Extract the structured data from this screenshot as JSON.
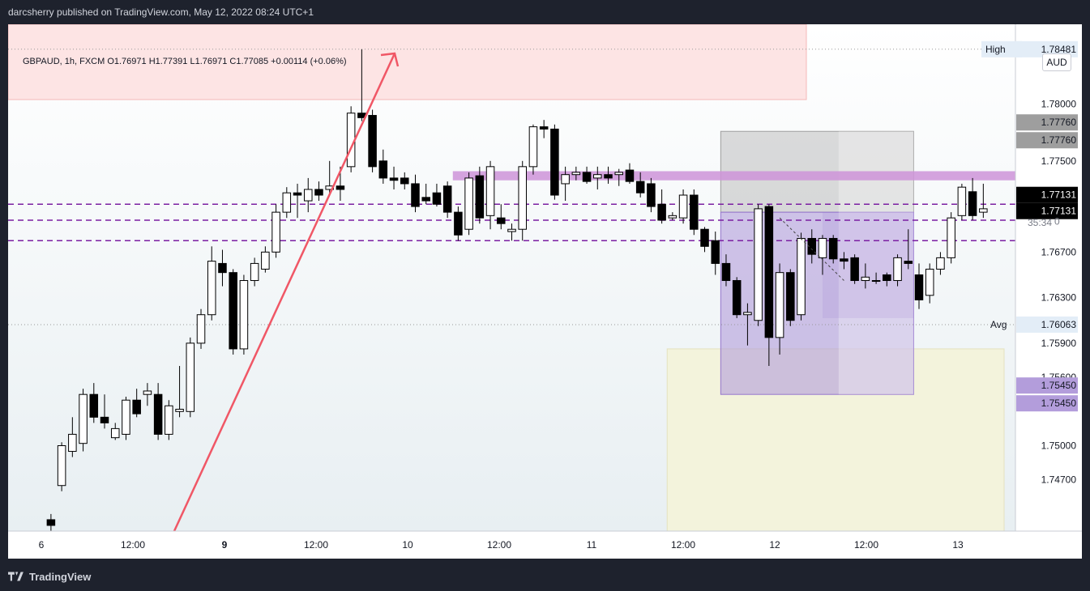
{
  "header": {
    "published_text": "darcsherry published on TradingView.com, May 12, 2022 08:24 UTC+1"
  },
  "footer": {
    "brand": "TradingView"
  },
  "legend": {
    "ohlc_text": "GBPAUD, 1h, FXCM  O1.76971  H1.77391  L1.76971  C1.77085  +0.00114 (+0.06%)"
  },
  "currency": "AUD",
  "price_labels": {
    "high_label": "High",
    "high_value": "1.78481",
    "avg_label": "Avg",
    "avg_value": "1.76063",
    "gray_top": "1.77760",
    "gray_bottom": "1.77760",
    "current_top": "1.77131",
    "current_bottom": "1.77131",
    "countdown": "35:34",
    "countdown_suffix": "0",
    "purple_top": "1.75450",
    "purple_bottom": "1.75450"
  },
  "colors": {
    "up_body": "#ffffff",
    "down_body": "#000000",
    "wick": "#000000",
    "dashed_lines": "#7b1fa2",
    "horizontal_band": "#ce93d8",
    "arrow": "#f05766",
    "supply_zone": "#fde4e4",
    "demand_zone": "#f3f3dc",
    "purple_box": "#b39ddb",
    "gray_box": "#bdbdbd"
  },
  "chart_data": {
    "type": "candlestick",
    "symbol": "GBPAUD",
    "timeframe": "1h",
    "x_tick_labels": [
      "6",
      "12:00",
      "9",
      "12:00",
      "10",
      "12:00",
      "11",
      "12:00",
      "12",
      "12:00",
      "13"
    ],
    "y_tick_labels": [
      "1.78000",
      "1.77500",
      "1.76700",
      "1.76300",
      "1.75900",
      "1.75600",
      "1.75000",
      "1.74700"
    ],
    "ylim": [
      1.7425,
      1.787
    ],
    "x_range": [
      -4,
      90
    ],
    "candles": [
      {
        "o": 1.7435,
        "h": 1.744,
        "l": 1.7425,
        "c": 1.743
      },
      {
        "o": 1.7465,
        "h": 1.7503,
        "l": 1.746,
        "c": 1.75
      },
      {
        "o": 1.7495,
        "h": 1.7525,
        "l": 1.749,
        "c": 1.751
      },
      {
        "o": 1.7502,
        "h": 1.755,
        "l": 1.7495,
        "c": 1.7545
      },
      {
        "o": 1.7545,
        "h": 1.7555,
        "l": 1.752,
        "c": 1.7525
      },
      {
        "o": 1.7525,
        "h": 1.7545,
        "l": 1.7515,
        "c": 1.752
      },
      {
        "o": 1.7507,
        "h": 1.752,
        "l": 1.7505,
        "c": 1.7515
      },
      {
        "o": 1.751,
        "h": 1.7543,
        "l": 1.7505,
        "c": 1.754
      },
      {
        "o": 1.754,
        "h": 1.755,
        "l": 1.7525,
        "c": 1.7528
      },
      {
        "o": 1.7545,
        "h": 1.7555,
        "l": 1.7535,
        "c": 1.7548
      },
      {
        "o": 1.7545,
        "h": 1.7555,
        "l": 1.7505,
        "c": 1.751
      },
      {
        "o": 1.751,
        "h": 1.754,
        "l": 1.7505,
        "c": 1.7535
      },
      {
        "o": 1.753,
        "h": 1.757,
        "l": 1.7525,
        "c": 1.7532
      },
      {
        "o": 1.753,
        "h": 1.7595,
        "l": 1.7525,
        "c": 1.759
      },
      {
        "o": 1.759,
        "h": 1.762,
        "l": 1.7585,
        "c": 1.7615
      },
      {
        "o": 1.7615,
        "h": 1.7675,
        "l": 1.761,
        "c": 1.7662
      },
      {
        "o": 1.766,
        "h": 1.7672,
        "l": 1.764,
        "c": 1.7652
      },
      {
        "o": 1.7652,
        "h": 1.7655,
        "l": 1.758,
        "c": 1.7585
      },
      {
        "o": 1.7585,
        "h": 1.765,
        "l": 1.758,
        "c": 1.7645
      },
      {
        "o": 1.7645,
        "h": 1.7665,
        "l": 1.764,
        "c": 1.766
      },
      {
        "o": 1.7655,
        "h": 1.7675,
        "l": 1.7652,
        "c": 1.767
      },
      {
        "o": 1.767,
        "h": 1.7712,
        "l": 1.7665,
        "c": 1.7705
      },
      {
        "o": 1.7705,
        "h": 1.7727,
        "l": 1.77,
        "c": 1.7722
      },
      {
        "o": 1.7722,
        "h": 1.773,
        "l": 1.77,
        "c": 1.772
      },
      {
        "o": 1.7715,
        "h": 1.7735,
        "l": 1.7705,
        "c": 1.7725
      },
      {
        "o": 1.7725,
        "h": 1.7732,
        "l": 1.7715,
        "c": 1.772
      },
      {
        "o": 1.7725,
        "h": 1.775,
        "l": 1.772,
        "c": 1.7728
      },
      {
        "o": 1.7728,
        "h": 1.7745,
        "l": 1.7715,
        "c": 1.7725
      },
      {
        "o": 1.7745,
        "h": 1.7798,
        "l": 1.774,
        "c": 1.7792
      },
      {
        "o": 1.7792,
        "h": 1.7848,
        "l": 1.7785,
        "c": 1.7788
      },
      {
        "o": 1.779,
        "h": 1.7795,
        "l": 1.774,
        "c": 1.7745
      },
      {
        "o": 1.775,
        "h": 1.776,
        "l": 1.773,
        "c": 1.7735
      },
      {
        "o": 1.7735,
        "h": 1.7745,
        "l": 1.7725,
        "c": 1.7733
      },
      {
        "o": 1.7735,
        "h": 1.774,
        "l": 1.7725,
        "c": 1.773
      },
      {
        "o": 1.773,
        "h": 1.7738,
        "l": 1.7705,
        "c": 1.771
      },
      {
        "o": 1.7718,
        "h": 1.773,
        "l": 1.7712,
        "c": 1.7715
      },
      {
        "o": 1.7722,
        "h": 1.773,
        "l": 1.771,
        "c": 1.7712
      },
      {
        "o": 1.7728,
        "h": 1.7732,
        "l": 1.77,
        "c": 1.7705
      },
      {
        "o": 1.7705,
        "h": 1.771,
        "l": 1.768,
        "c": 1.7685
      },
      {
        "o": 1.769,
        "h": 1.774,
        "l": 1.7685,
        "c": 1.7735
      },
      {
        "o": 1.7737,
        "h": 1.7745,
        "l": 1.7695,
        "c": 1.77
      },
      {
        "o": 1.7702,
        "h": 1.775,
        "l": 1.769,
        "c": 1.7745
      },
      {
        "o": 1.77,
        "h": 1.7712,
        "l": 1.769,
        "c": 1.7695
      },
      {
        "o": 1.7688,
        "h": 1.7695,
        "l": 1.768,
        "c": 1.769
      },
      {
        "o": 1.769,
        "h": 1.775,
        "l": 1.768,
        "c": 1.7745
      },
      {
        "o": 1.7745,
        "h": 1.7782,
        "l": 1.7738,
        "c": 1.778
      },
      {
        "o": 1.778,
        "h": 1.7786,
        "l": 1.777,
        "c": 1.7778
      },
      {
        "o": 1.7778,
        "h": 1.7782,
        "l": 1.7716,
        "c": 1.772
      },
      {
        "o": 1.773,
        "h": 1.7745,
        "l": 1.7715,
        "c": 1.7738
      },
      {
        "o": 1.7738,
        "h": 1.7745,
        "l": 1.7733,
        "c": 1.774
      },
      {
        "o": 1.774,
        "h": 1.7745,
        "l": 1.773,
        "c": 1.7732
      },
      {
        "o": 1.7735,
        "h": 1.7745,
        "l": 1.7725,
        "c": 1.7738
      },
      {
        "o": 1.7738,
        "h": 1.7745,
        "l": 1.773,
        "c": 1.7735
      },
      {
        "o": 1.7738,
        "h": 1.7743,
        "l": 1.7728,
        "c": 1.774
      },
      {
        "o": 1.7742,
        "h": 1.7748,
        "l": 1.773,
        "c": 1.7732
      },
      {
        "o": 1.7732,
        "h": 1.774,
        "l": 1.7718,
        "c": 1.7722
      },
      {
        "o": 1.773,
        "h": 1.7735,
        "l": 1.7705,
        "c": 1.771
      },
      {
        "o": 1.7712,
        "h": 1.7725,
        "l": 1.7695,
        "c": 1.7698
      },
      {
        "o": 1.77,
        "h": 1.7705,
        "l": 1.7698,
        "c": 1.7702
      },
      {
        "o": 1.77,
        "h": 1.7725,
        "l": 1.7695,
        "c": 1.772
      },
      {
        "o": 1.772,
        "h": 1.7725,
        "l": 1.7685,
        "c": 1.769
      },
      {
        "o": 1.769,
        "h": 1.7692,
        "l": 1.767,
        "c": 1.7675
      },
      {
        "o": 1.768,
        "h": 1.7688,
        "l": 1.765,
        "c": 1.766
      },
      {
        "o": 1.766,
        "h": 1.7668,
        "l": 1.764,
        "c": 1.7645
      },
      {
        "o": 1.7645,
        "h": 1.7648,
        "l": 1.7612,
        "c": 1.7615
      },
      {
        "o": 1.7615,
        "h": 1.7625,
        "l": 1.7588,
        "c": 1.7617
      },
      {
        "o": 1.761,
        "h": 1.7712,
        "l": 1.7605,
        "c": 1.7708
      },
      {
        "o": 1.771,
        "h": 1.7712,
        "l": 1.757,
        "c": 1.7595
      },
      {
        "o": 1.7595,
        "h": 1.766,
        "l": 1.758,
        "c": 1.7652
      },
      {
        "o": 1.7652,
        "h": 1.7655,
        "l": 1.7605,
        "c": 1.761
      },
      {
        "o": 1.7615,
        "h": 1.7687,
        "l": 1.761,
        "c": 1.7682
      },
      {
        "o": 1.7682,
        "h": 1.769,
        "l": 1.766,
        "c": 1.7668
      },
      {
        "o": 1.7665,
        "h": 1.7685,
        "l": 1.765,
        "c": 1.7682
      },
      {
        "o": 1.7682,
        "h": 1.7685,
        "l": 1.766,
        "c": 1.7664
      },
      {
        "o": 1.7664,
        "h": 1.767,
        "l": 1.7655,
        "c": 1.7662
      },
      {
        "o": 1.7665,
        "h": 1.7668,
        "l": 1.7642,
        "c": 1.7645
      },
      {
        "o": 1.7645,
        "h": 1.766,
        "l": 1.7638,
        "c": 1.7648
      },
      {
        "o": 1.7645,
        "h": 1.7652,
        "l": 1.7642,
        "c": 1.7645
      },
      {
        "o": 1.765,
        "h": 1.7652,
        "l": 1.764,
        "c": 1.7645
      },
      {
        "o": 1.7645,
        "h": 1.7668,
        "l": 1.764,
        "c": 1.7665
      },
      {
        "o": 1.7662,
        "h": 1.769,
        "l": 1.7655,
        "c": 1.766
      },
      {
        "o": 1.765,
        "h": 1.766,
        "l": 1.762,
        "c": 1.7628
      },
      {
        "o": 1.7632,
        "h": 1.766,
        "l": 1.7625,
        "c": 1.7655
      },
      {
        "o": 1.7655,
        "h": 1.767,
        "l": 1.765,
        "c": 1.7665
      },
      {
        "o": 1.7665,
        "h": 1.7705,
        "l": 1.766,
        "c": 1.77
      },
      {
        "o": 1.7702,
        "h": 1.773,
        "l": 1.7698,
        "c": 1.7727
      },
      {
        "o": 1.7723,
        "h": 1.7735,
        "l": 1.7698,
        "c": 1.7702
      },
      {
        "o": 1.7705,
        "h": 1.773,
        "l": 1.77,
        "c": 1.7708
      }
    ]
  }
}
